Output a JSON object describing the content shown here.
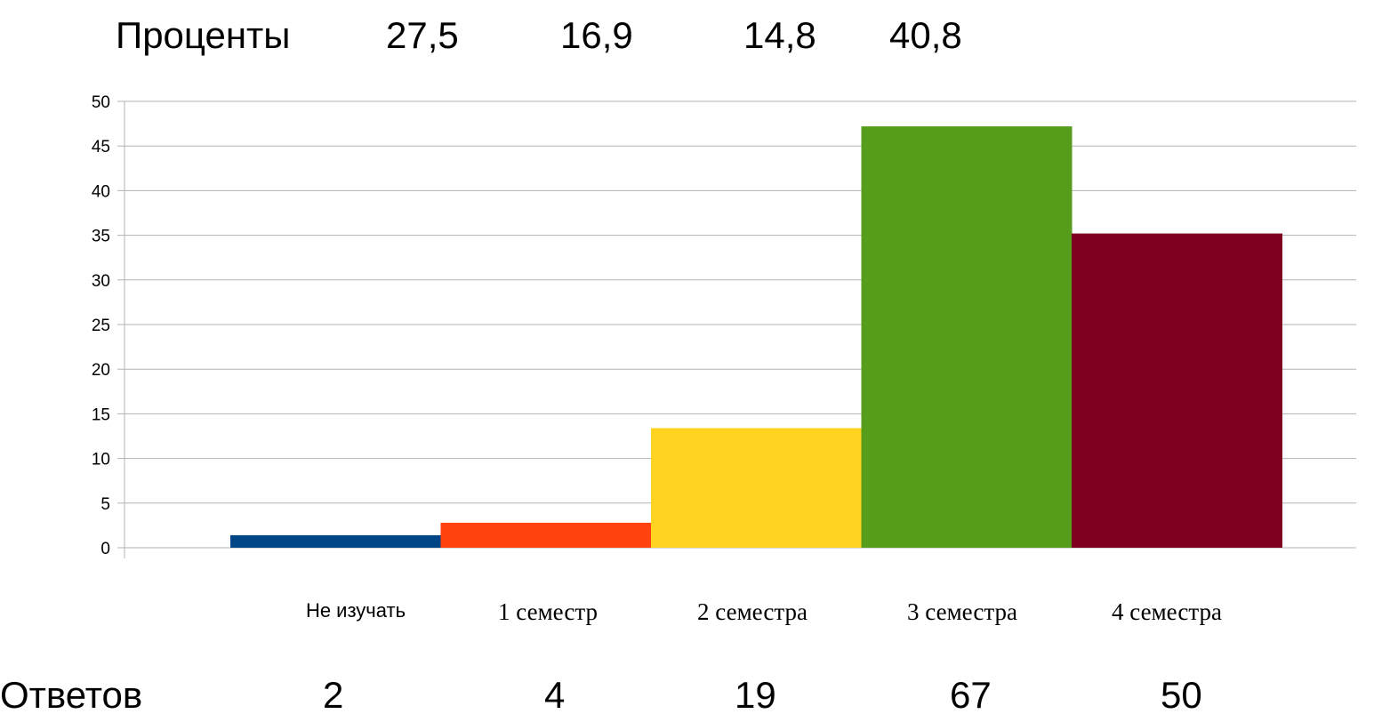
{
  "top_row": {
    "label": "Проценты",
    "values": [
      "27,5",
      "16,9",
      "14,8",
      "40,8"
    ]
  },
  "bottom_row": {
    "label": "Ответов",
    "values": [
      "2",
      "4",
      "19",
      "67",
      "50"
    ]
  },
  "chart_data": {
    "type": "bar",
    "categories": [
      "Не изучать",
      "1 семестр",
      "2 семестра",
      "3 семестра",
      "4 семестра"
    ],
    "values": [
      1.4,
      2.8,
      13.4,
      47.2,
      35.2
    ],
    "colors": [
      "#004586",
      "#ff420e",
      "#ffd320",
      "#579d1c",
      "#7e0021"
    ],
    "title": "",
    "xlabel": "",
    "ylabel": "",
    "ylim": [
      0,
      50
    ],
    "yticks": [
      "0",
      "5",
      "10",
      "15",
      "20",
      "25",
      "30",
      "35",
      "40",
      "45",
      "50"
    ],
    "grid": true,
    "legend": "none"
  }
}
